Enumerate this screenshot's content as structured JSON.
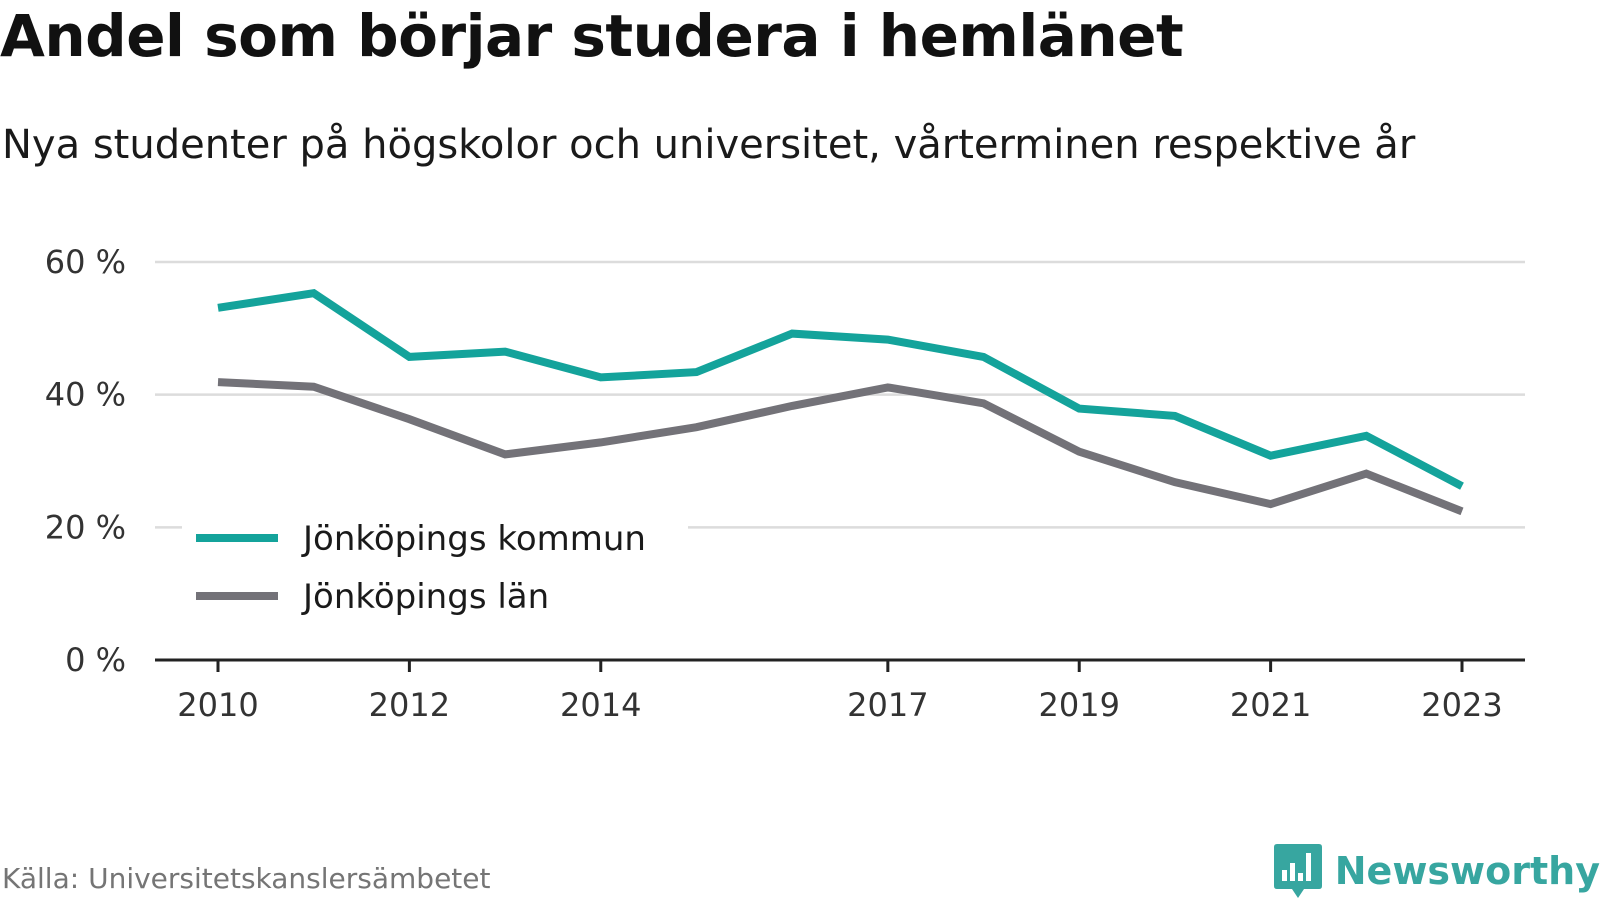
{
  "header": {
    "title": "Andel som börjar studera i hemlänet",
    "subtitle": "Nya studenter på högskolor och universitet, vårterminen respektive år"
  },
  "footer": {
    "source": "Källa: Universitetskanslersämbetet",
    "brand": "Newsworthy",
    "brand_icon": "newsworthy-logo-icon",
    "brand_color": "#37a6a0"
  },
  "chart_data": {
    "type": "line",
    "x": [
      2010,
      2011,
      2012,
      2013,
      2014,
      2015,
      2016,
      2017,
      2018,
      2019,
      2020,
      2021,
      2022,
      2023
    ],
    "x_tick_labels": [
      "2010",
      "2012",
      "2014",
      "2017",
      "2019",
      "2021",
      "2023"
    ],
    "y_tick_labels": [
      "0 %",
      "20 %",
      "40 %",
      "60 %"
    ],
    "y_ticks": [
      0,
      20,
      40,
      60
    ],
    "ylim": [
      0,
      60
    ],
    "grid": true,
    "legend_position": "bottom-left",
    "series": [
      {
        "name": "Jönköpings kommun",
        "color": "#14a39b",
        "values": [
          53.1,
          55.3,
          45.7,
          46.5,
          42.6,
          43.4,
          49.2,
          48.3,
          45.7,
          37.9,
          36.8,
          30.8,
          33.8,
          26.2
        ]
      },
      {
        "name": "Jönköpings län",
        "color": "#737278",
        "values": [
          41.9,
          41.2,
          36.3,
          31.0,
          32.8,
          35.1,
          38.3,
          41.1,
          38.7,
          31.4,
          26.8,
          23.5,
          28.1,
          22.4
        ]
      }
    ]
  }
}
